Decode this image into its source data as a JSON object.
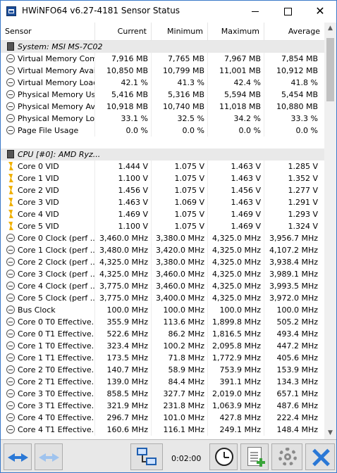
{
  "window": {
    "title": "HWiNFO64 v6.27-4181 Sensor Status"
  },
  "columns": [
    "Sensor",
    "Current",
    "Minimum",
    "Maximum",
    "Average"
  ],
  "rows": [
    {
      "kind": "group",
      "icon": "chip",
      "label": "System: MSI MS-7C02"
    },
    {
      "kind": "data",
      "icon": "gauge",
      "label": "Virtual Memory Com...",
      "current": "7,916 MB",
      "min": "7,765 MB",
      "max": "7,967 MB",
      "avg": "7,854 MB"
    },
    {
      "kind": "data",
      "icon": "gauge",
      "label": "Virtual Memory Avai...",
      "current": "10,850 MB",
      "min": "10,799 MB",
      "max": "11,001 MB",
      "avg": "10,912 MB"
    },
    {
      "kind": "data",
      "icon": "gauge",
      "label": "Virtual Memory Load",
      "current": "42.1 %",
      "min": "41.3 %",
      "max": "42.4 %",
      "avg": "41.8 %"
    },
    {
      "kind": "data",
      "icon": "gauge",
      "label": "Physical Memory Used",
      "current": "5,416 MB",
      "min": "5,316 MB",
      "max": "5,594 MB",
      "avg": "5,454 MB"
    },
    {
      "kind": "data",
      "icon": "gauge",
      "label": "Physical Memory Av...",
      "current": "10,918 MB",
      "min": "10,740 MB",
      "max": "11,018 MB",
      "avg": "10,880 MB"
    },
    {
      "kind": "data",
      "icon": "gauge",
      "label": "Physical Memory Load",
      "current": "33.1 %",
      "min": "32.5 %",
      "max": "34.2 %",
      "avg": "33.3 %"
    },
    {
      "kind": "data",
      "icon": "gauge",
      "label": "Page File Usage",
      "current": "0.0 %",
      "min": "0.0 %",
      "max": "0.0 %",
      "avg": "0.0 %"
    },
    {
      "kind": "blank"
    },
    {
      "kind": "group",
      "icon": "chip",
      "label": "CPU [#0]: AMD Ryz..."
    },
    {
      "kind": "data",
      "icon": "bolt",
      "label": "Core 0 VID",
      "current": "1.444 V",
      "min": "1.075 V",
      "max": "1.463 V",
      "avg": "1.285 V"
    },
    {
      "kind": "data",
      "icon": "bolt",
      "label": "Core 1 VID",
      "current": "1.100 V",
      "min": "1.075 V",
      "max": "1.463 V",
      "avg": "1.352 V"
    },
    {
      "kind": "data",
      "icon": "bolt",
      "label": "Core 2 VID",
      "current": "1.456 V",
      "min": "1.075 V",
      "max": "1.456 V",
      "avg": "1.277 V"
    },
    {
      "kind": "data",
      "icon": "bolt",
      "label": "Core 3 VID",
      "current": "1.463 V",
      "min": "1.069 V",
      "max": "1.463 V",
      "avg": "1.291 V"
    },
    {
      "kind": "data",
      "icon": "bolt",
      "label": "Core 4 VID",
      "current": "1.469 V",
      "min": "1.075 V",
      "max": "1.469 V",
      "avg": "1.293 V"
    },
    {
      "kind": "data",
      "icon": "bolt",
      "label": "Core 5 VID",
      "current": "1.100 V",
      "min": "1.075 V",
      "max": "1.469 V",
      "avg": "1.324 V"
    },
    {
      "kind": "data",
      "icon": "gauge",
      "label": "Core 0 Clock (perf ...",
      "current": "3,460.0 MHz",
      "min": "3,380.0 MHz",
      "max": "4,325.0 MHz",
      "avg": "3,956.7 MHz"
    },
    {
      "kind": "data",
      "icon": "gauge",
      "label": "Core 1 Clock (perf ...",
      "current": "3,480.0 MHz",
      "min": "3,420.0 MHz",
      "max": "4,325.0 MHz",
      "avg": "4,107.2 MHz"
    },
    {
      "kind": "data",
      "icon": "gauge",
      "label": "Core 2 Clock (perf ...",
      "current": "4,325.0 MHz",
      "min": "3,380.0 MHz",
      "max": "4,325.0 MHz",
      "avg": "3,938.4 MHz"
    },
    {
      "kind": "data",
      "icon": "gauge",
      "label": "Core 3 Clock (perf ...",
      "current": "4,325.0 MHz",
      "min": "3,460.0 MHz",
      "max": "4,325.0 MHz",
      "avg": "3,989.1 MHz"
    },
    {
      "kind": "data",
      "icon": "gauge",
      "label": "Core 4 Clock (perf ...",
      "current": "3,775.0 MHz",
      "min": "3,460.0 MHz",
      "max": "4,325.0 MHz",
      "avg": "3,993.5 MHz"
    },
    {
      "kind": "data",
      "icon": "gauge",
      "label": "Core 5 Clock (perf ...",
      "current": "3,775.0 MHz",
      "min": "3,400.0 MHz",
      "max": "4,325.0 MHz",
      "avg": "3,972.0 MHz"
    },
    {
      "kind": "data",
      "icon": "gauge",
      "label": "Bus Clock",
      "current": "100.0 MHz",
      "min": "100.0 MHz",
      "max": "100.0 MHz",
      "avg": "100.0 MHz"
    },
    {
      "kind": "data",
      "icon": "gauge",
      "label": "Core 0 T0 Effective...",
      "current": "355.9 MHz",
      "min": "113.6 MHz",
      "max": "1,899.8 MHz",
      "avg": "505.2 MHz"
    },
    {
      "kind": "data",
      "icon": "gauge",
      "label": "Core 0 T1 Effective...",
      "current": "522.6 MHz",
      "min": "86.2 MHz",
      "max": "1,816.5 MHz",
      "avg": "493.4 MHz"
    },
    {
      "kind": "data",
      "icon": "gauge",
      "label": "Core 1 T0 Effective...",
      "current": "323.4 MHz",
      "min": "100.2 MHz",
      "max": "2,095.8 MHz",
      "avg": "447.2 MHz"
    },
    {
      "kind": "data",
      "icon": "gauge",
      "label": "Core 1 T1 Effective...",
      "current": "173.5 MHz",
      "min": "71.8 MHz",
      "max": "1,772.9 MHz",
      "avg": "405.6 MHz"
    },
    {
      "kind": "data",
      "icon": "gauge",
      "label": "Core 2 T0 Effective...",
      "current": "140.7 MHz",
      "min": "58.9 MHz",
      "max": "753.9 MHz",
      "avg": "153.9 MHz"
    },
    {
      "kind": "data",
      "icon": "gauge",
      "label": "Core 2 T1 Effective...",
      "current": "139.0 MHz",
      "min": "84.4 MHz",
      "max": "391.1 MHz",
      "avg": "134.3 MHz"
    },
    {
      "kind": "data",
      "icon": "gauge",
      "label": "Core 3 T0 Effective...",
      "current": "858.5 MHz",
      "min": "327.7 MHz",
      "max": "2,019.0 MHz",
      "avg": "657.1 MHz"
    },
    {
      "kind": "data",
      "icon": "gauge",
      "label": "Core 3 T1 Effective...",
      "current": "321.9 MHz",
      "min": "231.8 MHz",
      "max": "1,063.9 MHz",
      "avg": "487.6 MHz"
    },
    {
      "kind": "data",
      "icon": "gauge",
      "label": "Core 4 T0 Effective...",
      "current": "296.7 MHz",
      "min": "101.0 MHz",
      "max": "427.8 MHz",
      "avg": "222.4 MHz"
    },
    {
      "kind": "data",
      "icon": "gauge",
      "label": "Core 4 T1 Effective...",
      "current": "160.6 MHz",
      "min": "116.1 MHz",
      "max": "249.1 MHz",
      "avg": "148.4 MHz"
    }
  ],
  "toolbar": {
    "timer": "0:02:00"
  }
}
